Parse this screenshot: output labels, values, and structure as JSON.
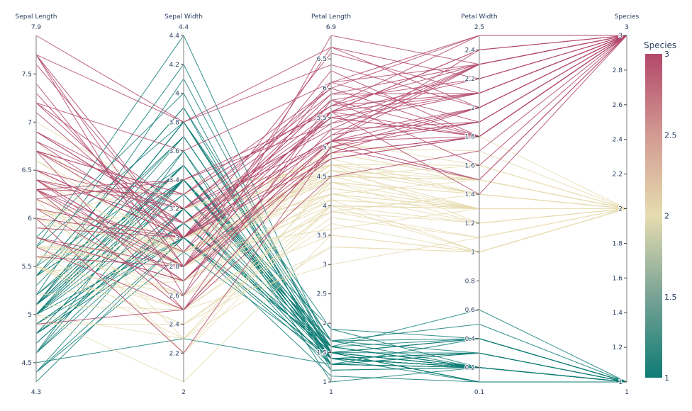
{
  "chart_data": {
    "type": "parallel_coordinates",
    "color_by": "Species",
    "colorscale": {
      "1": "#0e7c75",
      "1.5": "#78a295",
      "2": "#e6dcb0",
      "2.5": "#d29a92",
      "3": "#b3486b"
    },
    "dimensions": [
      {
        "label": "Sepal Length",
        "range": [
          4.3,
          7.9
        ],
        "range_labels": [
          "4.3",
          "7.9"
        ],
        "ticks": [
          4.5,
          5,
          5.5,
          6,
          6.5,
          7,
          7.5
        ],
        "tick_labels": [
          "4.5",
          "5",
          "5.5",
          "6",
          "6.5",
          "7",
          "7.5"
        ]
      },
      {
        "label": "Sepal Width",
        "range": [
          2,
          4.4
        ],
        "range_labels": [
          "2",
          "4.4"
        ],
        "ticks": [
          2.2,
          2.4,
          2.6,
          2.8,
          3,
          3.2,
          3.4,
          3.6,
          3.8,
          4,
          4.2,
          4.4
        ],
        "tick_labels": [
          "2.2",
          "2.4",
          "2.6",
          "2.8",
          "3",
          "3.2",
          "3.4",
          "3.6",
          "3.8",
          "4",
          "4.2",
          "4.4"
        ]
      },
      {
        "label": "Petal Length",
        "range": [
          1,
          6.9
        ],
        "range_labels": [
          "1",
          "6.9"
        ],
        "ticks": [
          1,
          1.5,
          2,
          2.5,
          3,
          3.5,
          4,
          4.5,
          5,
          5.5,
          6,
          6.5
        ],
        "tick_labels": [
          "1",
          "1.5",
          "2",
          "2.5",
          "3",
          "3.5",
          "4",
          "4.5",
          "5",
          "5.5",
          "6",
          "6.5"
        ]
      },
      {
        "label": "Petal Width",
        "range": [
          0.1,
          2.5
        ],
        "range_labels": [
          "0.1",
          "2.5"
        ],
        "ticks": [
          0.2,
          0.4,
          0.6,
          0.8,
          1,
          1.2,
          1.4,
          1.6,
          1.8,
          2,
          2.2,
          2.4
        ],
        "tick_labels": [
          "0.2",
          "0.4",
          "0.6",
          "0.8",
          "1",
          "1.2",
          "1.4",
          "1.6",
          "1.8",
          "2",
          "2.2",
          "2.4"
        ]
      },
      {
        "label": "Species",
        "range": [
          1,
          3
        ],
        "range_labels": [
          "1",
          "3"
        ],
        "ticks": [
          1,
          1.2,
          1.4,
          1.6,
          1.8,
          2,
          2.2,
          2.4,
          2.6,
          2.8,
          3
        ],
        "tick_labels": [
          "1",
          "1.2",
          "1.4",
          "1.6",
          "1.8",
          "2",
          "2.2",
          "2.4",
          "2.6",
          "2.8",
          "3"
        ]
      }
    ],
    "colorbar": {
      "title": "Species",
      "range": [
        1,
        3
      ],
      "ticks": [
        1,
        1.5,
        2,
        2.5,
        3
      ],
      "tick_labels": [
        "1",
        "1.5",
        "2",
        "2.5",
        "3"
      ]
    },
    "rows": [
      [
        5.1,
        3.5,
        1.4,
        0.2,
        1
      ],
      [
        4.9,
        3.0,
        1.4,
        0.2,
        1
      ],
      [
        4.7,
        3.2,
        1.3,
        0.2,
        1
      ],
      [
        4.6,
        3.1,
        1.5,
        0.2,
        1
      ],
      [
        5.0,
        3.6,
        1.4,
        0.2,
        1
      ],
      [
        5.4,
        3.9,
        1.7,
        0.4,
        1
      ],
      [
        4.6,
        3.4,
        1.4,
        0.3,
        1
      ],
      [
        5.0,
        3.4,
        1.5,
        0.2,
        1
      ],
      [
        4.4,
        2.9,
        1.4,
        0.2,
        1
      ],
      [
        4.9,
        3.1,
        1.5,
        0.1,
        1
      ],
      [
        5.4,
        3.7,
        1.5,
        0.2,
        1
      ],
      [
        4.8,
        3.4,
        1.6,
        0.2,
        1
      ],
      [
        4.8,
        3.0,
        1.4,
        0.1,
        1
      ],
      [
        4.3,
        3.0,
        1.1,
        0.1,
        1
      ],
      [
        5.8,
        4.0,
        1.2,
        0.2,
        1
      ],
      [
        5.7,
        4.4,
        1.5,
        0.4,
        1
      ],
      [
        5.4,
        3.9,
        1.3,
        0.4,
        1
      ],
      [
        5.1,
        3.5,
        1.4,
        0.3,
        1
      ],
      [
        5.7,
        3.8,
        1.7,
        0.3,
        1
      ],
      [
        5.1,
        3.8,
        1.5,
        0.3,
        1
      ],
      [
        5.4,
        3.4,
        1.7,
        0.2,
        1
      ],
      [
        5.1,
        3.7,
        1.5,
        0.4,
        1
      ],
      [
        4.6,
        3.6,
        1.0,
        0.2,
        1
      ],
      [
        5.1,
        3.3,
        1.7,
        0.5,
        1
      ],
      [
        4.8,
        3.4,
        1.9,
        0.2,
        1
      ],
      [
        5.0,
        3.0,
        1.6,
        0.2,
        1
      ],
      [
        5.0,
        3.4,
        1.6,
        0.4,
        1
      ],
      [
        5.2,
        3.5,
        1.5,
        0.2,
        1
      ],
      [
        5.2,
        3.4,
        1.4,
        0.2,
        1
      ],
      [
        4.7,
        3.2,
        1.6,
        0.2,
        1
      ],
      [
        4.8,
        3.1,
        1.6,
        0.2,
        1
      ],
      [
        5.4,
        3.4,
        1.5,
        0.4,
        1
      ],
      [
        5.2,
        4.1,
        1.5,
        0.1,
        1
      ],
      [
        5.5,
        4.2,
        1.4,
        0.2,
        1
      ],
      [
        4.9,
        3.1,
        1.5,
        0.1,
        1
      ],
      [
        5.0,
        3.2,
        1.2,
        0.2,
        1
      ],
      [
        5.5,
        3.5,
        1.3,
        0.2,
        1
      ],
      [
        4.9,
        3.1,
        1.5,
        0.1,
        1
      ],
      [
        4.4,
        3.0,
        1.3,
        0.2,
        1
      ],
      [
        5.1,
        3.4,
        1.5,
        0.2,
        1
      ],
      [
        5.0,
        3.5,
        1.3,
        0.3,
        1
      ],
      [
        4.5,
        2.3,
        1.3,
        0.3,
        1
      ],
      [
        4.4,
        3.2,
        1.3,
        0.2,
        1
      ],
      [
        5.0,
        3.5,
        1.6,
        0.6,
        1
      ],
      [
        5.1,
        3.8,
        1.9,
        0.4,
        1
      ],
      [
        4.8,
        3.0,
        1.4,
        0.3,
        1
      ],
      [
        5.1,
        3.8,
        1.6,
        0.2,
        1
      ],
      [
        4.6,
        3.2,
        1.4,
        0.2,
        1
      ],
      [
        5.3,
        3.7,
        1.5,
        0.2,
        1
      ],
      [
        5.0,
        3.3,
        1.4,
        0.2,
        1
      ],
      [
        7.0,
        3.2,
        4.7,
        1.4,
        2
      ],
      [
        6.4,
        3.2,
        4.5,
        1.5,
        2
      ],
      [
        6.9,
        3.1,
        4.9,
        1.5,
        2
      ],
      [
        5.5,
        2.3,
        4.0,
        1.3,
        2
      ],
      [
        6.5,
        2.8,
        4.6,
        1.5,
        2
      ],
      [
        5.7,
        2.8,
        4.5,
        1.3,
        2
      ],
      [
        6.3,
        3.3,
        4.7,
        1.6,
        2
      ],
      [
        4.9,
        2.4,
        3.3,
        1.0,
        2
      ],
      [
        6.6,
        2.9,
        4.6,
        1.3,
        2
      ],
      [
        5.2,
        2.7,
        3.9,
        1.4,
        2
      ],
      [
        5.0,
        2.0,
        3.5,
        1.0,
        2
      ],
      [
        5.9,
        3.0,
        4.2,
        1.5,
        2
      ],
      [
        6.0,
        2.2,
        4.0,
        1.0,
        2
      ],
      [
        6.1,
        2.9,
        4.7,
        1.4,
        2
      ],
      [
        5.6,
        2.9,
        3.6,
        1.3,
        2
      ],
      [
        6.7,
        3.1,
        4.4,
        1.4,
        2
      ],
      [
        5.6,
        3.0,
        4.5,
        1.5,
        2
      ],
      [
        5.8,
        2.7,
        4.1,
        1.0,
        2
      ],
      [
        6.2,
        2.2,
        4.5,
        1.5,
        2
      ],
      [
        5.6,
        2.5,
        3.9,
        1.1,
        2
      ],
      [
        5.9,
        3.2,
        4.8,
        1.8,
        2
      ],
      [
        6.1,
        2.8,
        4.0,
        1.3,
        2
      ],
      [
        6.3,
        2.5,
        4.9,
        1.5,
        2
      ],
      [
        6.1,
        2.8,
        4.7,
        1.2,
        2
      ],
      [
        6.4,
        2.9,
        4.3,
        1.3,
        2
      ],
      [
        6.6,
        3.0,
        4.4,
        1.4,
        2
      ],
      [
        6.8,
        2.8,
        4.8,
        1.4,
        2
      ],
      [
        6.7,
        3.0,
        5.0,
        1.7,
        2
      ],
      [
        6.0,
        2.9,
        4.5,
        1.5,
        2
      ],
      [
        5.7,
        2.6,
        3.5,
        1.0,
        2
      ],
      [
        5.5,
        2.4,
        3.8,
        1.1,
        2
      ],
      [
        5.5,
        2.4,
        3.7,
        1.0,
        2
      ],
      [
        5.8,
        2.7,
        3.9,
        1.2,
        2
      ],
      [
        6.0,
        2.7,
        5.1,
        1.6,
        2
      ],
      [
        5.4,
        3.0,
        4.5,
        1.5,
        2
      ],
      [
        6.0,
        3.4,
        4.5,
        1.6,
        2
      ],
      [
        6.7,
        3.1,
        4.7,
        1.5,
        2
      ],
      [
        6.3,
        2.3,
        4.4,
        1.3,
        2
      ],
      [
        5.6,
        3.0,
        4.1,
        1.3,
        2
      ],
      [
        5.5,
        2.5,
        4.0,
        1.3,
        2
      ],
      [
        5.5,
        2.6,
        4.4,
        1.2,
        2
      ],
      [
        6.1,
        3.0,
        4.6,
        1.4,
        2
      ],
      [
        5.8,
        2.6,
        4.0,
        1.2,
        2
      ],
      [
        5.0,
        2.3,
        3.3,
        1.0,
        2
      ],
      [
        5.6,
        2.7,
        4.2,
        1.3,
        2
      ],
      [
        5.7,
        3.0,
        4.2,
        1.2,
        2
      ],
      [
        5.7,
        2.9,
        4.2,
        1.3,
        2
      ],
      [
        6.2,
        2.9,
        4.3,
        1.3,
        2
      ],
      [
        5.1,
        2.5,
        3.0,
        1.1,
        2
      ],
      [
        5.7,
        2.8,
        4.1,
        1.3,
        2
      ],
      [
        6.3,
        3.3,
        6.0,
        2.5,
        3
      ],
      [
        5.8,
        2.7,
        5.1,
        1.9,
        3
      ],
      [
        7.1,
        3.0,
        5.9,
        2.1,
        3
      ],
      [
        6.3,
        2.9,
        5.6,
        1.8,
        3
      ],
      [
        6.5,
        3.0,
        5.8,
        2.2,
        3
      ],
      [
        7.6,
        3.0,
        6.6,
        2.1,
        3
      ],
      [
        4.9,
        2.5,
        4.5,
        1.7,
        3
      ],
      [
        7.3,
        2.9,
        6.3,
        1.8,
        3
      ],
      [
        6.7,
        2.5,
        5.8,
        1.8,
        3
      ],
      [
        7.2,
        3.6,
        6.1,
        2.5,
        3
      ],
      [
        6.5,
        3.2,
        5.1,
        2.0,
        3
      ],
      [
        6.4,
        2.7,
        5.3,
        1.9,
        3
      ],
      [
        6.8,
        3.0,
        5.5,
        2.1,
        3
      ],
      [
        5.7,
        2.5,
        5.0,
        2.0,
        3
      ],
      [
        5.8,
        2.8,
        5.1,
        2.4,
        3
      ],
      [
        6.4,
        3.2,
        5.3,
        2.3,
        3
      ],
      [
        6.5,
        3.0,
        5.5,
        1.8,
        3
      ],
      [
        7.7,
        3.8,
        6.7,
        2.2,
        3
      ],
      [
        7.7,
        2.6,
        6.9,
        2.3,
        3
      ],
      [
        6.0,
        2.2,
        5.0,
        1.5,
        3
      ],
      [
        6.9,
        3.2,
        5.7,
        2.3,
        3
      ],
      [
        5.6,
        2.8,
        4.9,
        2.0,
        3
      ],
      [
        7.7,
        2.8,
        6.7,
        2.0,
        3
      ],
      [
        6.3,
        2.7,
        4.9,
        1.8,
        3
      ],
      [
        6.7,
        3.3,
        5.7,
        2.1,
        3
      ],
      [
        7.2,
        3.2,
        6.0,
        1.8,
        3
      ],
      [
        6.2,
        2.8,
        4.8,
        1.8,
        3
      ],
      [
        6.1,
        3.0,
        4.9,
        1.8,
        3
      ],
      [
        6.4,
        2.8,
        5.6,
        2.1,
        3
      ],
      [
        7.2,
        3.0,
        5.8,
        1.6,
        3
      ],
      [
        7.4,
        2.8,
        6.1,
        1.9,
        3
      ],
      [
        7.9,
        3.8,
        6.4,
        2.0,
        3
      ],
      [
        6.4,
        2.8,
        5.6,
        2.2,
        3
      ],
      [
        6.3,
        2.8,
        5.1,
        1.5,
        3
      ],
      [
        6.1,
        2.6,
        5.6,
        1.4,
        3
      ],
      [
        7.7,
        3.0,
        6.1,
        2.3,
        3
      ],
      [
        6.3,
        3.4,
        5.6,
        2.4,
        3
      ],
      [
        6.4,
        3.1,
        5.5,
        1.8,
        3
      ],
      [
        6.0,
        3.0,
        4.8,
        1.8,
        3
      ],
      [
        6.9,
        3.1,
        5.4,
        2.1,
        3
      ],
      [
        6.7,
        3.1,
        5.6,
        2.4,
        3
      ],
      [
        6.9,
        3.1,
        5.1,
        2.3,
        3
      ],
      [
        5.8,
        2.7,
        5.1,
        1.9,
        3
      ],
      [
        6.8,
        3.2,
        5.9,
        2.3,
        3
      ],
      [
        6.7,
        3.3,
        5.7,
        2.5,
        3
      ],
      [
        6.7,
        3.0,
        5.2,
        2.3,
        3
      ],
      [
        6.3,
        2.5,
        5.0,
        1.9,
        3
      ],
      [
        6.5,
        3.0,
        5.2,
        2.0,
        3
      ],
      [
        6.2,
        3.4,
        5.4,
        2.3,
        3
      ],
      [
        5.9,
        3.0,
        5.1,
        1.8,
        3
      ]
    ]
  }
}
